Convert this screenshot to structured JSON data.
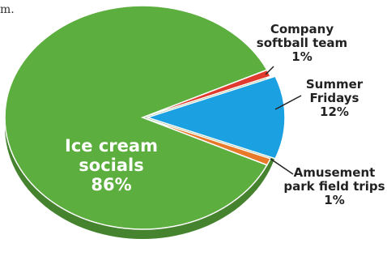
{
  "fragment": "m.",
  "chart_data": {
    "type": "pie",
    "categories": [
      "Company softball team",
      "Summer Fridays",
      "Amusement park field trips",
      "Ice cream socials"
    ],
    "values": [
      1,
      12,
      1,
      86
    ],
    "value_labels": [
      "1%",
      "12%",
      "1%",
      "86%"
    ],
    "colors": [
      "#e0392e",
      "#1ba0e2",
      "#e8782a",
      "#5cae3e"
    ]
  }
}
